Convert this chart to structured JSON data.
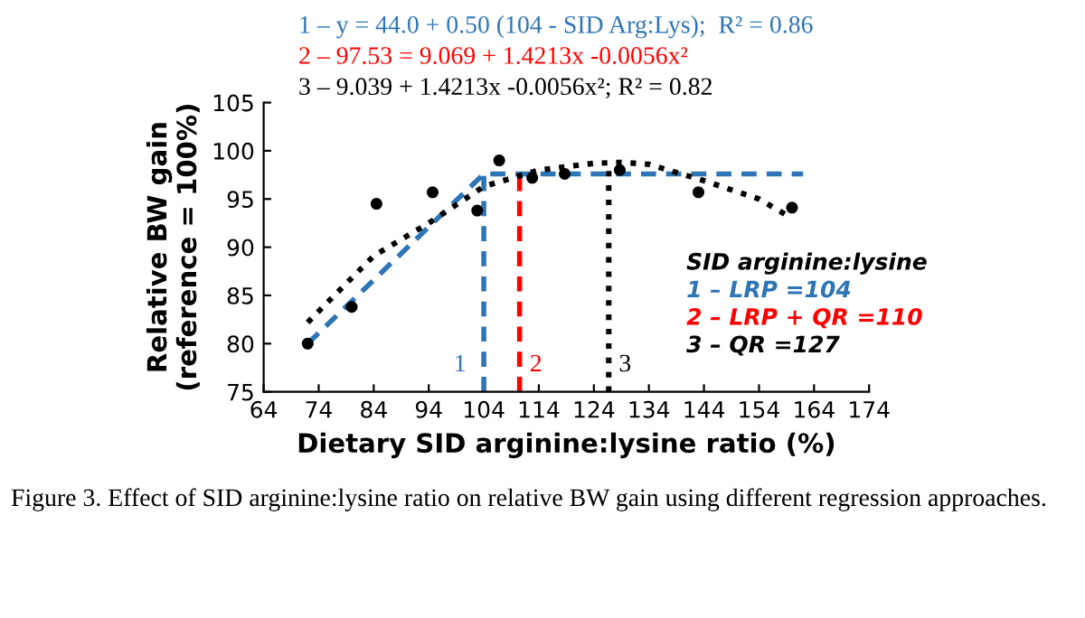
{
  "chart_data": {
    "type": "scatter",
    "xlabel": "Dietary SID arginine:lysine ratio (%)",
    "ylabel": "Relative BW gain\n(reference = 100%)",
    "xlim": [
      64,
      174
    ],
    "xticks": [
      64,
      74,
      84,
      94,
      104,
      114,
      124,
      134,
      144,
      154,
      164,
      174
    ],
    "ylim": [
      75,
      105
    ],
    "yticks": [
      75,
      80,
      85,
      90,
      95,
      100,
      105
    ],
    "grid": false,
    "legend": "bottom right",
    "legend_title": "SID arginine:lysine",
    "series": [
      {
        "marker": "circle",
        "color": "#000000",
        "x": [
          72,
          80,
          84.5,
          94.7,
          102.8,
          106.8,
          112.8,
          118.7,
          128.7,
          143,
          160
        ],
        "values": [
          80.0,
          83.8,
          94.5,
          95.7,
          93.8,
          99.0,
          97.2,
          97.6,
          98.0,
          95.7,
          94.1
        ]
      },
      {
        "type": "line",
        "name": "1 – LRP =104",
        "color": "#2e75b6",
        "line_style": "dashed",
        "x": [
          72,
          104,
          162
        ],
        "values": [
          80.0,
          97.6,
          97.6
        ]
      },
      {
        "type": "line",
        "name": "2 – LRP + QR =110",
        "color": "#ff0000",
        "line_style": "dashed",
        "x": [
          110.5,
          110.5
        ],
        "values": [
          75,
          97.7
        ]
      },
      {
        "type": "line",
        "name": "3 – QR =127",
        "color": "#000000",
        "line_style": "dotted",
        "x": [
          126.7,
          126.7
        ],
        "values": [
          75,
          98.6
        ]
      },
      {
        "type": "line",
        "color": "#2e75b6",
        "line_style": "dashed",
        "x": [
          104,
          104
        ],
        "values": [
          75,
          97.6
        ]
      },
      {
        "type": "line",
        "color": "#000000",
        "line_style": "dotted",
        "x": [
          72,
          84,
          94,
          104,
          114,
          124,
          129,
          134,
          144,
          154,
          160
        ],
        "values": [
          82.2,
          89.1,
          92.5,
          96.3,
          98.0,
          98.7,
          98.8,
          98.6,
          96.9,
          95.0,
          93.0
        ]
      }
    ],
    "annotations": [
      "1 – y = 44.0 + 0.50 (104 - SID Arg:Lys);  R² = 0.86",
      "2 – 97.53 = 9.069 + 1.4213x -0.0056x²",
      "3 – 9.039 + 1.4213x -0.0056x²; R² = 0.82",
      {
        "text": "1",
        "x": 104,
        "y": 75
      },
      {
        "text": "2",
        "x": 110.5,
        "y": 75
      },
      {
        "text": "3",
        "x": 126.7,
        "y": 75
      },
      "Figure 3. Effect of SID arginine:lysine ratio on relative BW gain using different regression approaches."
    ]
  }
}
